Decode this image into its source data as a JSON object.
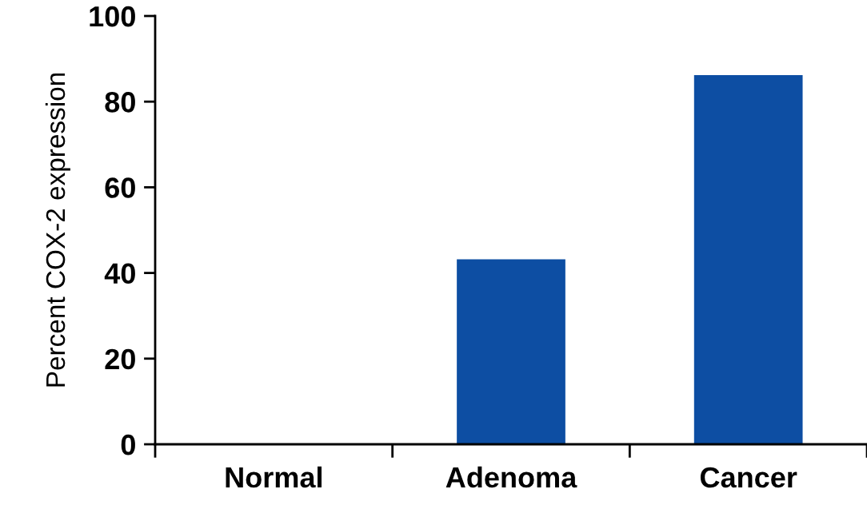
{
  "chart_data": {
    "type": "bar",
    "ylabel": "Percent COX-2 expression",
    "categories": [
      "Normal",
      "Adenoma",
      "Cancer"
    ],
    "values": [
      0,
      43,
      86
    ],
    "color": "#0d4ea3",
    "ylim": [
      0,
      100
    ],
    "yticks": [
      0,
      20,
      40,
      60,
      80,
      100
    ],
    "grid": false
  }
}
